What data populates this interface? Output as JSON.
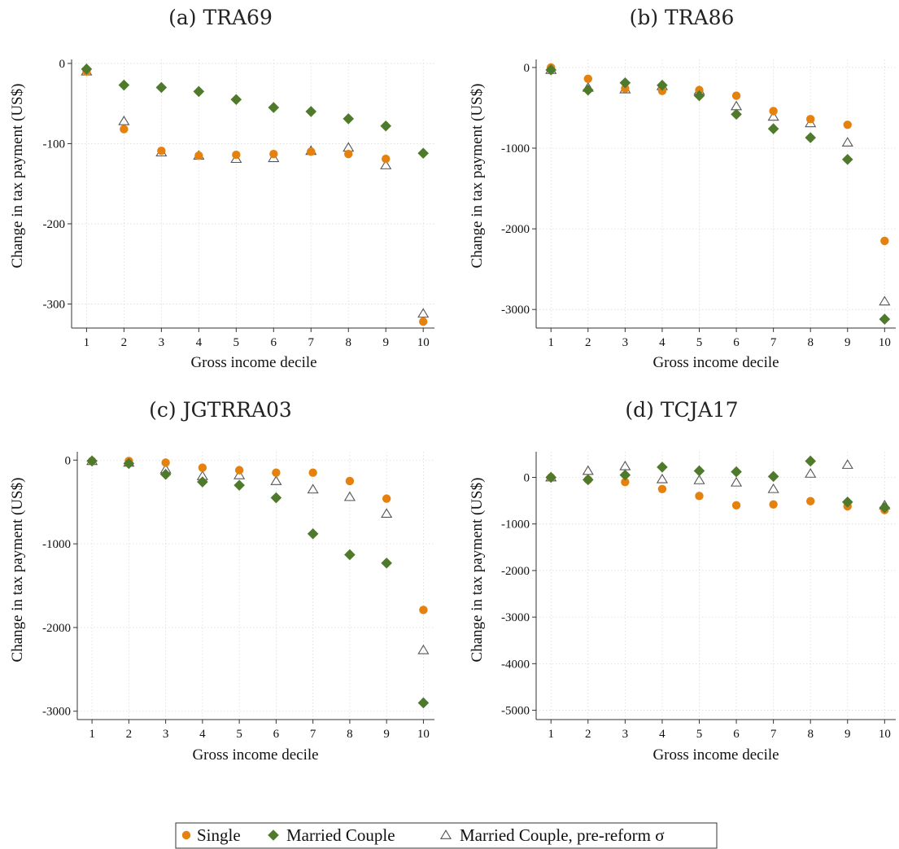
{
  "colors": {
    "single": "#E5820F",
    "married": "#4F7A2B",
    "pre_reform": "#555555"
  },
  "legend": [
    {
      "key": "single",
      "label": "Single",
      "marker": "circle"
    },
    {
      "key": "married",
      "label": "Married Couple",
      "marker": "diamond"
    },
    {
      "key": "pre_reform",
      "label": "Married Couple, pre-reform σ",
      "marker": "triangle-hollow"
    }
  ],
  "chart_data": [
    {
      "type": "scatter",
      "title": "(a) TRA69",
      "xlabel": "Gross income decile",
      "ylabel": "Change in tax payment (US$)",
      "x": [
        1,
        2,
        3,
        4,
        5,
        6,
        7,
        8,
        9,
        10
      ],
      "xlim": [
        0.6,
        10.3
      ],
      "ylim": [
        -330,
        5
      ],
      "yticks": [
        0,
        -100,
        -200,
        -300
      ],
      "grid": true,
      "series": [
        {
          "name": "Single",
          "values": [
            -10,
            -82,
            -109,
            -115,
            -114,
            -113,
            -110,
            -113,
            -119,
            -322
          ]
        },
        {
          "name": "Married Couple",
          "values": [
            -7,
            -27,
            -30,
            -35,
            -45,
            -55,
            -60,
            -69,
            -78,
            -112
          ]
        },
        {
          "name": "Married Couple, pre-reform σ",
          "values": [
            -10,
            -72,
            -111,
            -115,
            -119,
            -118,
            -109,
            -105,
            -127,
            -312
          ]
        }
      ]
    },
    {
      "type": "scatter",
      "title": "(b) TRA86",
      "xlabel": "Gross income decile",
      "ylabel": "Change in tax payment (US$)",
      "x": [
        1,
        2,
        3,
        4,
        5,
        6,
        7,
        8,
        9,
        10
      ],
      "xlim": [
        0.6,
        10.3
      ],
      "ylim": [
        -3230,
        100
      ],
      "yticks": [
        0,
        -1000,
        -2000,
        -3000
      ],
      "grid": true,
      "series": [
        {
          "name": "Single",
          "values": [
            0,
            -140,
            -260,
            -290,
            -280,
            -350,
            -540,
            -640,
            -710,
            -2150
          ]
        },
        {
          "name": "Married Couple",
          "values": [
            -30,
            -280,
            -190,
            -220,
            -350,
            -580,
            -760,
            -870,
            -1140,
            -3120
          ]
        },
        {
          "name": "Married Couple, pre-reform σ",
          "values": [
            -30,
            -250,
            -270,
            -230,
            -290,
            -480,
            -610,
            -690,
            -930,
            -2900
          ]
        }
      ]
    },
    {
      "type": "scatter",
      "title": "(c) JGTRRA03",
      "xlabel": "Gross income decile",
      "ylabel": "Change in tax payment (US$)",
      "x": [
        1,
        2,
        3,
        4,
        5,
        6,
        7,
        8,
        9,
        10
      ],
      "xlim": [
        0.6,
        10.3
      ],
      "ylim": [
        -3100,
        100
      ],
      "yticks": [
        0,
        -1000,
        -2000,
        -3000
      ],
      "grid": true,
      "series": [
        {
          "name": "Single",
          "values": [
            -10,
            -10,
            -30,
            -90,
            -120,
            -150,
            -150,
            -250,
            -460,
            -1790
          ]
        },
        {
          "name": "Married Couple",
          "values": [
            -10,
            -40,
            -170,
            -260,
            -300,
            -450,
            -880,
            -1130,
            -1230,
            -2900
          ]
        },
        {
          "name": "Married Couple, pre-reform σ",
          "values": [
            -10,
            -30,
            -110,
            -190,
            -180,
            -250,
            -350,
            -440,
            -640,
            -2270
          ]
        }
      ]
    },
    {
      "type": "scatter",
      "title": "(d) TCJA17",
      "xlabel": "Gross income decile",
      "ylabel": "Change in tax payment (US$)",
      "x": [
        1,
        2,
        3,
        4,
        5,
        6,
        7,
        8,
        9,
        10
      ],
      "xlim": [
        0.6,
        10.3
      ],
      "ylim": [
        -5200,
        550
      ],
      "yticks": [
        0,
        -1000,
        -2000,
        -3000,
        -4000,
        -5000
      ],
      "grid": true,
      "series": [
        {
          "name": "Single",
          "values": [
            0,
            -50,
            -100,
            -250,
            -400,
            -600,
            -580,
            -510,
            -620,
            -700
          ]
        },
        {
          "name": "Married Couple",
          "values": [
            0,
            -50,
            50,
            220,
            140,
            120,
            20,
            350,
            -530,
            -650
          ]
        },
        {
          "name": "Married Couple, pre-reform σ",
          "values": [
            0,
            140,
            240,
            -40,
            -60,
            -110,
            -250,
            80,
            270,
            -600
          ]
        }
      ]
    }
  ]
}
